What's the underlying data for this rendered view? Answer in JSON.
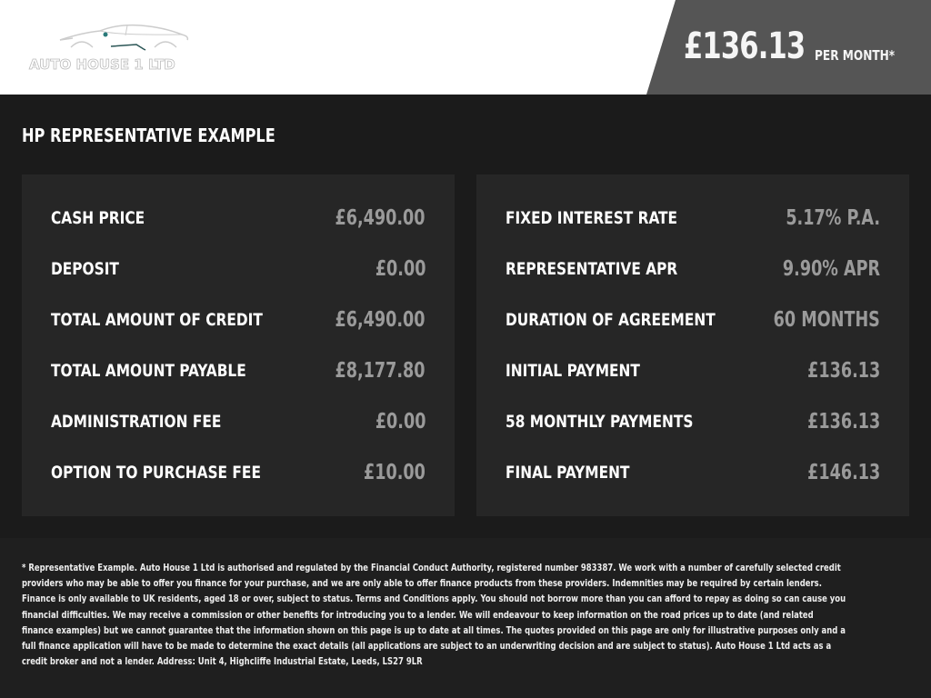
{
  "header": {
    "brand": "AUTO HOUSE 1 LTD",
    "monthly_price": "£136.13",
    "per_month_label": "PER MONTH*"
  },
  "title": "HP REPRESENTATIVE EXAMPLE",
  "left_panel": [
    {
      "label": "CASH PRICE",
      "value": "£6,490.00"
    },
    {
      "label": "DEPOSIT",
      "value": "£0.00"
    },
    {
      "label": "TOTAL AMOUNT OF CREDIT",
      "value": "£6,490.00"
    },
    {
      "label": "TOTAL AMOUNT PAYABLE",
      "value": "£8,177.80"
    },
    {
      "label": "ADMINISTRATION FEE",
      "value": "£0.00"
    },
    {
      "label": "OPTION TO PURCHASE FEE",
      "value": "£10.00"
    }
  ],
  "right_panel": [
    {
      "label": "FIXED INTEREST RATE",
      "value": "5.17% P.A."
    },
    {
      "label": "REPRESENTATIVE APR",
      "value": "9.90% APR"
    },
    {
      "label": "DURATION OF AGREEMENT",
      "value": "60 MONTHS"
    },
    {
      "label": "INITIAL PAYMENT",
      "value": "£136.13"
    },
    {
      "label": "58 MONTHLY PAYMENTS",
      "value": "£136.13"
    },
    {
      "label": "FINAL PAYMENT",
      "value": "£146.13"
    }
  ],
  "footer": "* Representative Example. Auto House 1 Ltd is authorised and regulated by the Financial Conduct Authority, registered number 983387. We work with a number of carefully selected credit providers who may be able to offer you finance for your purchase, and we are only able to offer finance products from these providers. Indemnities may be required by certain lenders. Finance is only available to UK residents, aged 18 or over, subject to status. Terms and Conditions apply. You should not borrow more than you can afford to repay as doing so can cause you financial difficulties. We may receive a commission or other benefits for introducing you to a lender. We will endeavour to keep information on the road prices up to date (and related finance examples) but we cannot guarantee that the information shown on this page is up to date at all times. The quotes provided on this page are only for illustrative purposes only and a full finance application will have to be made to determine the exact details (all applications are subject to an underwriting decision and are subject to status). Auto House 1 Ltd acts as a credit broker and not a lender. Address: Unit 4, Highcliffe Industrial Estate, Leeds, LS27 9LR",
  "colors": {
    "header_bg": "#ffffff",
    "price_bg": "#555555",
    "body_bg": "#1b1b1b",
    "panel_bg": "#262626",
    "value_text": "#9a9a9a",
    "logo_accent": "#2a7a7a"
  }
}
